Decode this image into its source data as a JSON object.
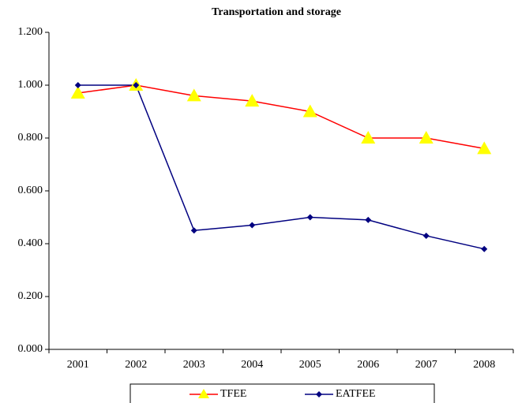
{
  "chart_data": {
    "type": "line",
    "title": "Transportation and storage",
    "categories": [
      "2001",
      "2002",
      "2003",
      "2004",
      "2005",
      "2006",
      "2007",
      "2008"
    ],
    "series": [
      {
        "name": "TFEE",
        "color": "#ff0000",
        "marker_color": "#ffff00",
        "marker": "triangle",
        "values": [
          0.97,
          1.0,
          0.96,
          0.94,
          0.9,
          0.8,
          0.8,
          0.76
        ]
      },
      {
        "name": "EATFEE",
        "color": "#000080",
        "marker_color": "#000080",
        "marker": "diamond",
        "values": [
          1.0,
          1.0,
          0.45,
          0.47,
          0.5,
          0.49,
          0.43,
          0.38
        ]
      }
    ],
    "ylim": [
      0,
      1.2
    ],
    "yticks": [
      {
        "value": 0,
        "label": "0.000"
      },
      {
        "value": 0.2,
        "label": "0.200"
      },
      {
        "value": 0.4,
        "label": "0.400"
      },
      {
        "value": 0.6,
        "label": "0.600"
      },
      {
        "value": 0.8,
        "label": "0.800"
      },
      {
        "value": 1.0,
        "label": "1.000"
      },
      {
        "value": 1.2,
        "label": "1.200"
      }
    ],
    "grid": false
  }
}
